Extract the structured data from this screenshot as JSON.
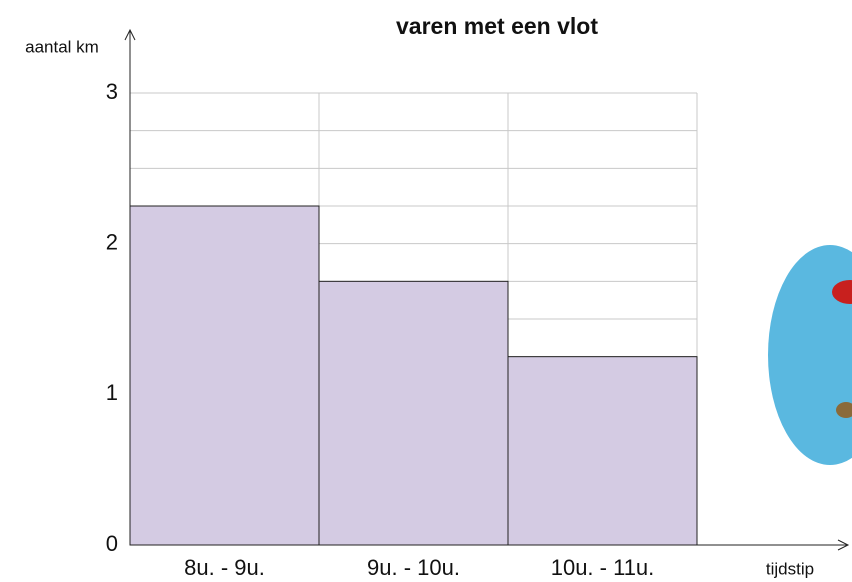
{
  "chart_data": {
    "type": "bar",
    "title": "varen met een vlot",
    "y_label": "aantal km",
    "x_label": "tijdstip",
    "categories": [
      "8u. - 9u.",
      "9u. - 10u.",
      "10u. - 11u."
    ],
    "values": [
      2.25,
      1.75,
      1.25
    ],
    "color": "#d4cbe3",
    "ylim": [
      0,
      3
    ],
    "yticks": [
      0,
      1,
      2,
      3
    ],
    "minor_yticks": [
      0.25,
      0.5,
      0.75,
      1.25,
      1.5,
      1.75,
      2.25,
      2.5,
      2.75
    ],
    "grid": true
  }
}
